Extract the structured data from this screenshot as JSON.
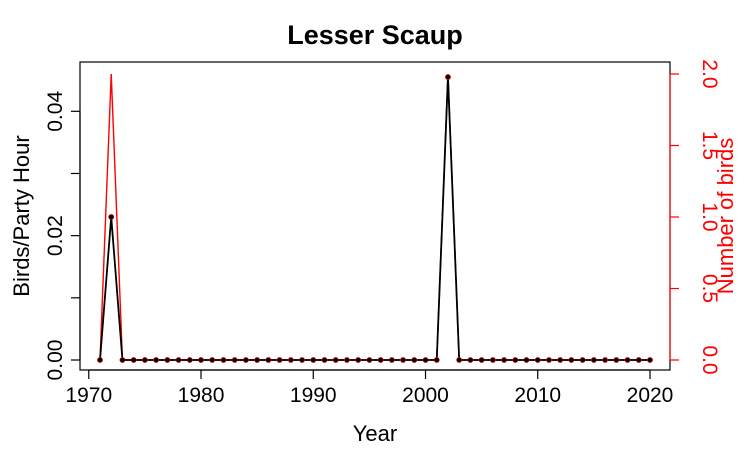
{
  "chart_data": {
    "type": "line",
    "title": "Lesser Scaup",
    "xlabel": "Year",
    "ylabel": "Birds/Party Hour",
    "y2label": "Number of birds",
    "xlim": [
      1970,
      2020
    ],
    "ylim": [
      0,
      0.046
    ],
    "y2lim": [
      0,
      2.0
    ],
    "x_ticks": [
      1970,
      1980,
      1990,
      2000,
      2010,
      2020
    ],
    "y_ticks": [
      0,
      0.01,
      0.02,
      0.03,
      0.04
    ],
    "y_tick_labels": [
      "0.00",
      "",
      "0.02",
      "",
      "0.04"
    ],
    "y2_ticks": [
      0,
      0.5,
      1.0,
      1.5,
      2.0
    ],
    "y2_tick_labels": [
      "0.0",
      "0.5",
      "1.0",
      "1.5",
      "2.0"
    ],
    "grid": false,
    "colors": {
      "primary": "#000000",
      "secondary": "#ff0000"
    },
    "x": [
      1971,
      1972,
      1973,
      1974,
      1975,
      1976,
      1977,
      1978,
      1979,
      1980,
      1981,
      1982,
      1983,
      1984,
      1985,
      1986,
      1987,
      1988,
      1989,
      1990,
      1991,
      1992,
      1993,
      1994,
      1995,
      1996,
      1997,
      1998,
      1999,
      2000,
      2001,
      2002,
      2003,
      2004,
      2005,
      2006,
      2007,
      2008,
      2009,
      2010,
      2011,
      2012,
      2013,
      2014,
      2015,
      2016,
      2017,
      2018,
      2019,
      2020
    ],
    "series": [
      {
        "axis": "left",
        "style": "line+points",
        "values": [
          0,
          0.023,
          0,
          0,
          0,
          0,
          0,
          0,
          0,
          0,
          0,
          0,
          0,
          0,
          0,
          0,
          0,
          0,
          0,
          0,
          0,
          0,
          0,
          0,
          0,
          0,
          0,
          0,
          0,
          0,
          0,
          0.0455,
          0,
          0,
          0,
          0,
          0,
          0,
          0,
          0,
          0,
          0,
          0,
          0,
          0,
          0,
          0,
          0,
          0,
          0
        ]
      },
      {
        "axis": "right",
        "style": "line",
        "values": [
          0,
          2,
          0,
          0,
          0,
          0,
          0,
          0,
          0,
          0,
          0,
          0,
          0,
          0,
          0,
          0,
          0,
          0,
          0,
          0,
          0,
          0,
          0,
          0,
          0,
          0,
          0,
          0,
          0,
          0,
          0,
          2,
          0,
          0,
          0,
          0,
          0,
          0,
          0,
          0,
          0,
          0,
          0,
          0,
          0,
          0,
          0,
          0,
          0,
          0
        ]
      }
    ]
  }
}
